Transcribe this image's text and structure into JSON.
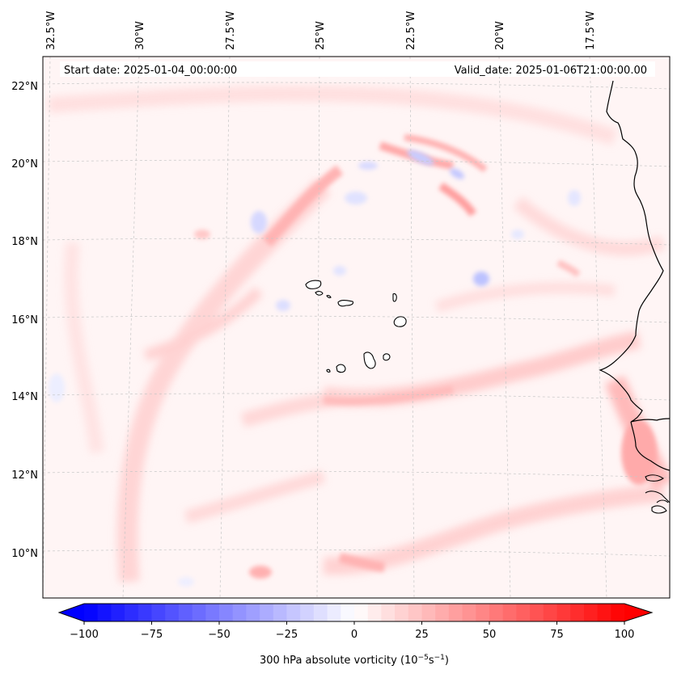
{
  "header": {
    "start_date": "Start date: 2025-01-04_00:00:00",
    "valid_date": "Valid_date: 2025-01-06T21:00:00.00"
  },
  "lon_labels": [
    "32.5°W",
    "30°W",
    "27.5°W",
    "25°W",
    "22.5°W",
    "20°W",
    "17.5°W"
  ],
  "lat_labels": [
    "22°N",
    "20°N",
    "18°N",
    "16°N",
    "14°N",
    "12°N",
    "10°N"
  ],
  "colorbar": {
    "ticks": [
      "−100",
      "−75",
      "−50",
      "−25",
      "0",
      "25",
      "50",
      "75",
      "100"
    ],
    "label_prefix": "300 hPa absolute vorticity (10",
    "label_exp1": "−5",
    "label_mid": "s",
    "label_exp2": "−1",
    "label_suffix": ")",
    "range": [
      -100,
      100
    ],
    "extend": "both",
    "min_color": "#0000ff",
    "mid_color": "#ffffff",
    "max_color": "#ff0000"
  },
  "map": {
    "coastline_color": "#000000",
    "gridline_color": "#b8b8b8",
    "background_tint": "#fff4f4"
  }
}
